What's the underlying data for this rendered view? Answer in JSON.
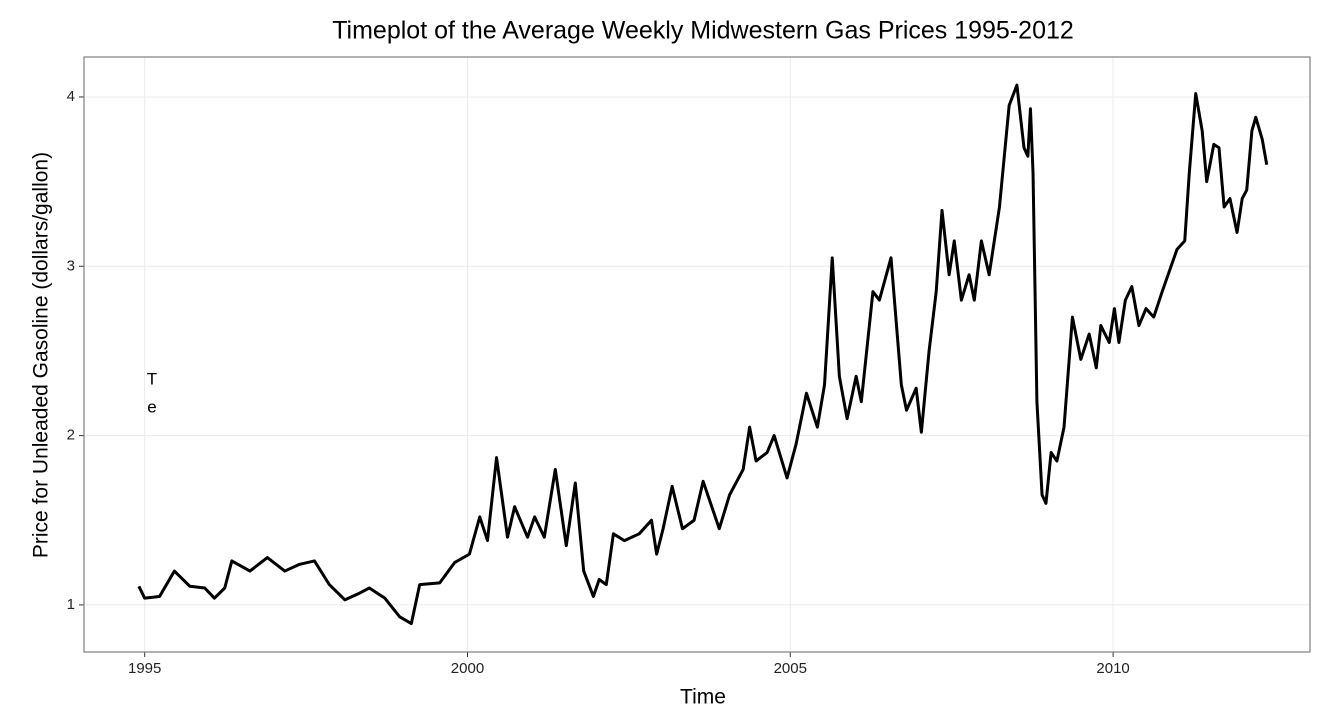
{
  "chart_data": {
    "type": "line",
    "title": "Timeplot of the Average Weekly Midwestern Gas Prices 1995-2012",
    "x_label": "Time",
    "y_label": "Price for Unleaded Gasoline (dollars/gallon)",
    "annotations": [
      "T",
      "e"
    ],
    "color": "#000000",
    "grid": true,
    "xlim": [
      1994.06,
      2013.05
    ],
    "ylim": [
      0.722,
      4.236
    ],
    "xticks": [
      1995,
      2000,
      2005,
      2010
    ],
    "yticks": [
      1,
      2,
      3,
      4
    ],
    "x": [
      1994.91,
      1995.0,
      1995.23,
      1995.46,
      1995.7,
      1995.93,
      1996.08,
      1996.24,
      1996.35,
      1996.63,
      1996.9,
      1997.17,
      1997.4,
      1997.63,
      1997.86,
      1998.1,
      1998.33,
      1998.48,
      1998.72,
      1998.95,
      1999.13,
      1999.26,
      1999.57,
      1999.8,
      2000.03,
      2000.19,
      2000.31,
      2000.45,
      2000.62,
      2000.73,
      2000.93,
      2001.04,
      2001.19,
      2001.36,
      2001.53,
      2001.67,
      2001.8,
      2001.95,
      2002.04,
      2002.15,
      2002.26,
      2002.43,
      2002.66,
      2002.85,
      2002.93,
      2003.03,
      2003.17,
      2003.33,
      2003.51,
      2003.65,
      2003.9,
      2004.06,
      2004.27,
      2004.37,
      2004.47,
      2004.64,
      2004.75,
      2004.95,
      2005.09,
      2005.25,
      2005.42,
      2005.53,
      2005.65,
      2005.76,
      2005.88,
      2006.02,
      2006.1,
      2006.28,
      2006.38,
      2006.56,
      2006.72,
      2006.8,
      2006.95,
      2007.03,
      2007.15,
      2007.26,
      2007.35,
      2007.46,
      2007.54,
      2007.65,
      2007.77,
      2007.85,
      2007.96,
      2008.08,
      2008.24,
      2008.39,
      2008.51,
      2008.62,
      2008.68,
      2008.72,
      2008.76,
      2008.82,
      2008.9,
      2008.96,
      2009.04,
      2009.13,
      2009.24,
      2009.37,
      2009.5,
      2009.63,
      2009.74,
      2009.81,
      2009.94,
      2010.02,
      2010.09,
      2010.19,
      2010.29,
      2010.4,
      2010.51,
      2010.63,
      2010.76,
      2010.99,
      2011.11,
      2011.18,
      2011.28,
      2011.38,
      2011.45,
      2011.56,
      2011.64,
      2011.72,
      2011.81,
      2011.92,
      2012.0,
      2012.07,
      2012.15,
      2012.21,
      2012.31,
      2012.38
    ],
    "values": [
      1.11,
      1.04,
      1.05,
      1.2,
      1.11,
      1.1,
      1.04,
      1.1,
      1.26,
      1.2,
      1.28,
      1.2,
      1.24,
      1.26,
      1.12,
      1.03,
      1.07,
      1.1,
      1.04,
      0.93,
      0.89,
      1.12,
      1.13,
      1.25,
      1.3,
      1.52,
      1.38,
      1.87,
      1.4,
      1.58,
      1.4,
      1.52,
      1.4,
      1.8,
      1.35,
      1.72,
      1.2,
      1.05,
      1.15,
      1.12,
      1.42,
      1.38,
      1.42,
      1.5,
      1.3,
      1.45,
      1.7,
      1.45,
      1.5,
      1.73,
      1.45,
      1.65,
      1.8,
      2.05,
      1.85,
      1.9,
      2.0,
      1.75,
      1.95,
      2.25,
      2.05,
      2.3,
      3.05,
      2.35,
      2.1,
      2.35,
      2.2,
      2.85,
      2.8,
      3.05,
      2.3,
      2.15,
      2.28,
      2.02,
      2.5,
      2.85,
      3.33,
      2.95,
      3.15,
      2.8,
      2.95,
      2.8,
      3.15,
      2.95,
      3.35,
      3.95,
      4.07,
      3.7,
      3.65,
      3.93,
      3.55,
      2.2,
      1.65,
      1.6,
      1.9,
      1.85,
      2.05,
      2.7,
      2.45,
      2.6,
      2.4,
      2.65,
      2.55,
      2.75,
      2.55,
      2.8,
      2.88,
      2.65,
      2.75,
      2.7,
      2.85,
      3.1,
      3.15,
      3.55,
      4.02,
      3.8,
      3.5,
      3.72,
      3.7,
      3.35,
      3.4,
      3.2,
      3.4,
      3.45,
      3.8,
      3.88,
      3.75,
      3.6
    ]
  }
}
